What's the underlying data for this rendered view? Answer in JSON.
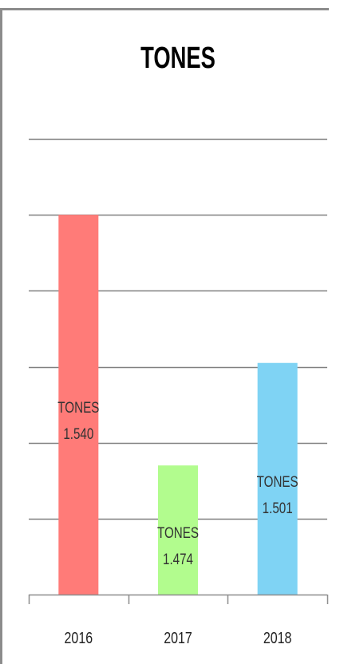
{
  "chart_data": {
    "type": "bar",
    "title": "TONES",
    "categories": [
      "2016",
      "2017",
      "2018"
    ],
    "series": [
      {
        "values": [
          1.54,
          1.474,
          1.501
        ]
      }
    ],
    "data_labels": [
      {
        "name": "TONES",
        "value": "1.540"
      },
      {
        "name": "TONES",
        "value": "1.474"
      },
      {
        "name": "TONES",
        "value": "1.501"
      }
    ],
    "colors": [
      "#ff7b78",
      "#b2fc8e",
      "#7fd3f4"
    ],
    "gridline_color": "#808080",
    "ylim": [
      1.44,
      1.56
    ],
    "grid": true,
    "legend": "none",
    "xlabel": "",
    "ylabel": ""
  }
}
